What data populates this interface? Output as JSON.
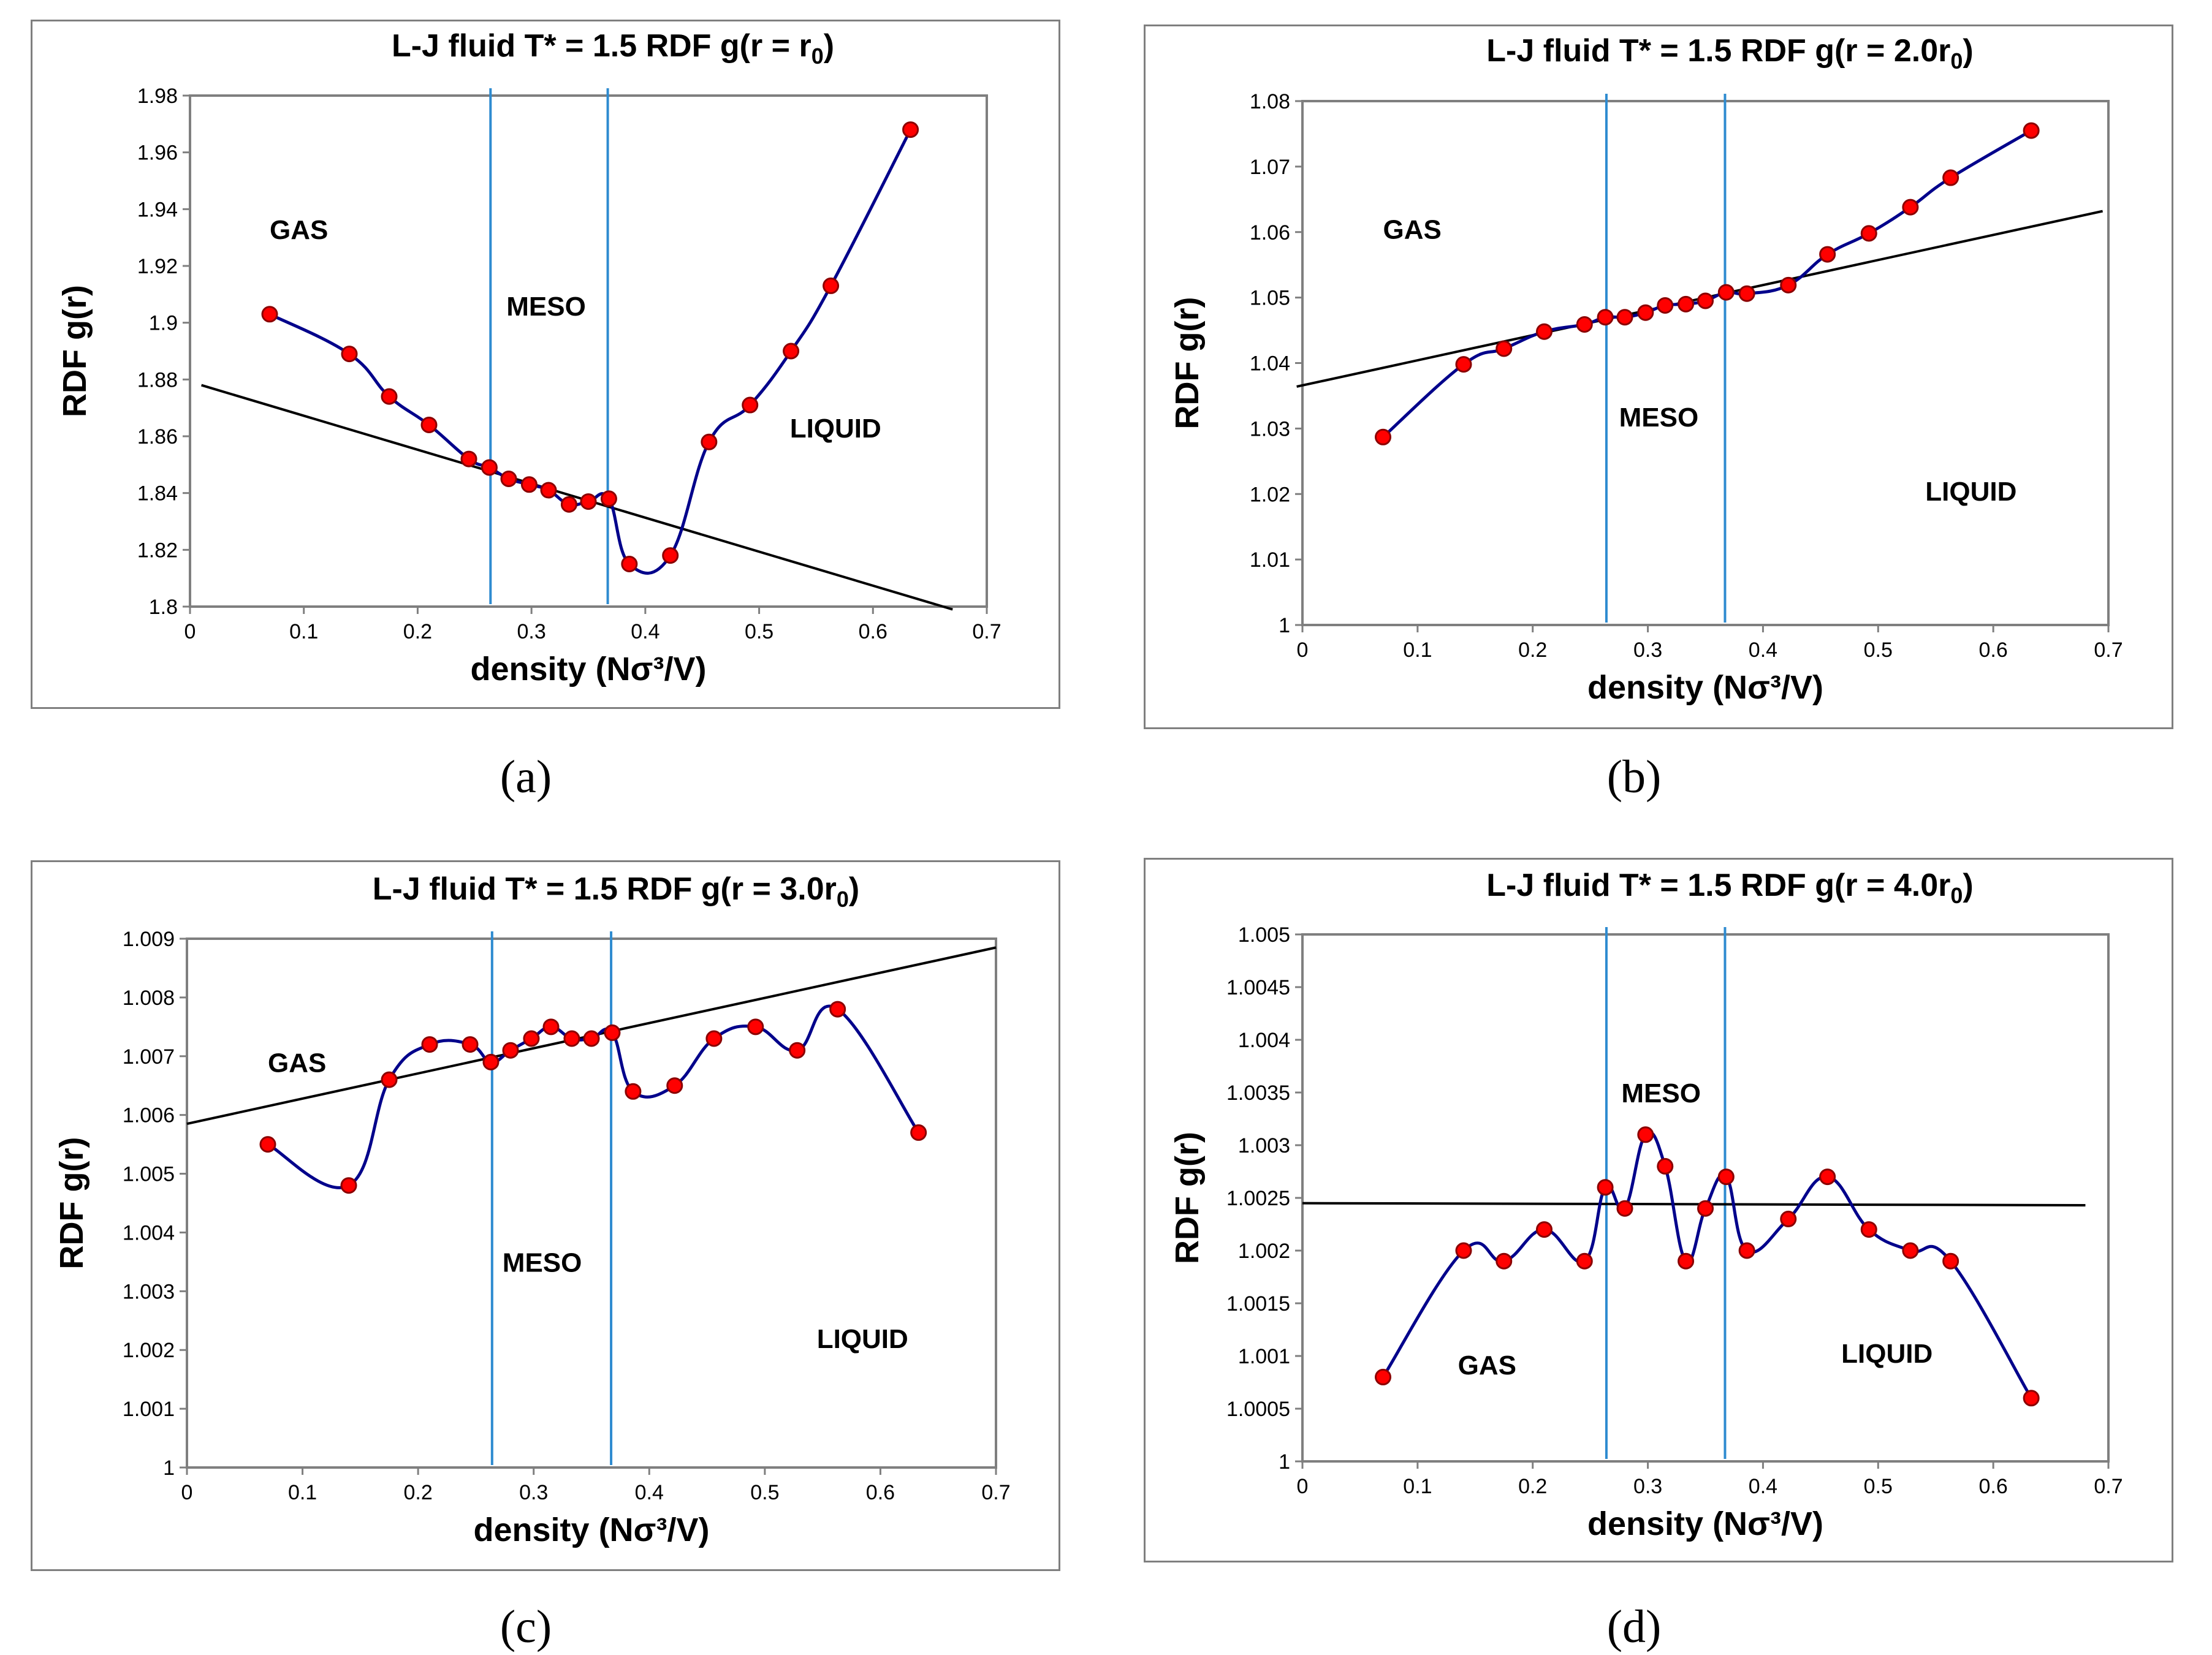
{
  "chart_data": [
    {
      "type": "line",
      "panel_label": "(a)",
      "title_main": "L-J fluid T* = 1.5 RDF g(r = r",
      "title_sub": "0",
      "title_end": ")",
      "xlabel": "density (Nσ³/V)",
      "ylabel": "RDF g(r)",
      "xlim": [
        0,
        0.7
      ],
      "ylim": [
        1.8,
        1.98
      ],
      "xticks": [
        "0",
        "0.1",
        "0.2",
        "0.3",
        "0.4",
        "0.5",
        "0.6",
        "0.7"
      ],
      "yticks": [
        "1.8",
        "1.82",
        "1.84",
        "1.86",
        "1.88",
        "1.9",
        "1.92",
        "1.94",
        "1.96",
        "1.98"
      ],
      "series": [
        {
          "name": "RDF",
          "x": [
            0.07,
            0.14,
            0.175,
            0.21,
            0.245,
            0.263,
            0.28,
            0.298,
            0.315,
            0.333,
            0.35,
            0.368,
            0.386,
            0.422,
            0.456,
            0.492,
            0.528,
            0.563,
            0.633
          ],
          "y": [
            1.903,
            1.889,
            1.874,
            1.864,
            1.852,
            1.849,
            1.845,
            1.843,
            1.841,
            1.836,
            1.837,
            1.838,
            1.815,
            1.818,
            1.858,
            1.871,
            1.89,
            1.913,
            1.968
          ]
        }
      ],
      "trendline": {
        "x": [
          0.01,
          0.67
        ],
        "y": [
          1.878,
          1.799
        ]
      },
      "boundaries": [
        0.264,
        0.367
      ],
      "regions": [
        {
          "label": "GAS",
          "x": 0.07,
          "y": 1.933
        },
        {
          "label": "MESO",
          "x": 0.278,
          "y": 1.906
        },
        {
          "label": "LIQUID",
          "x": 0.527,
          "y": 1.863
        }
      ]
    },
    {
      "type": "line",
      "panel_label": "(b)",
      "title_main": "L-J fluid T* = 1.5 RDF g(r = 2.0r",
      "title_sub": "0",
      "title_end": ")",
      "xlabel": "density (Nσ³/V)",
      "ylabel": "RDF g(r)",
      "xlim": [
        0,
        0.7
      ],
      "ylim": [
        1,
        1.08
      ],
      "xticks": [
        "0",
        "0.1",
        "0.2",
        "0.3",
        "0.4",
        "0.5",
        "0.6",
        "0.7"
      ],
      "yticks": [
        "1",
        "1.01",
        "1.02",
        "1.03",
        "1.04",
        "1.05",
        "1.06",
        "1.07",
        "1.08"
      ],
      "series": [
        {
          "name": "RDF",
          "x": [
            0.07,
            0.14,
            0.175,
            0.21,
            0.245,
            0.263,
            0.28,
            0.298,
            0.315,
            0.333,
            0.35,
            0.368,
            0.386,
            0.422,
            0.456,
            0.492,
            0.528,
            0.563,
            0.633
          ],
          "y": [
            1.0287,
            1.0398,
            1.0422,
            1.0448,
            1.0459,
            1.047,
            1.047,
            1.0477,
            1.0488,
            1.049,
            1.0495,
            1.0508,
            1.0506,
            1.0519,
            1.0566,
            1.0598,
            1.0638,
            1.0683,
            1.0755
          ]
        }
      ],
      "trendline": {
        "x": [
          -0.005,
          0.695
        ],
        "y": [
          1.0364,
          1.0632
        ]
      },
      "boundaries": [
        0.264,
        0.367
      ],
      "regions": [
        {
          "label": "GAS",
          "x": 0.07,
          "y": 1.0605
        },
        {
          "label": "MESO",
          "x": 0.275,
          "y": 1.0318
        },
        {
          "label": "LIQUID",
          "x": 0.541,
          "y": 1.0205
        }
      ]
    },
    {
      "type": "line",
      "panel_label": "(c)",
      "title_main": "L-J fluid T* = 1.5 RDF g(r = 3.0r",
      "title_sub": "0",
      "title_end": ")",
      "xlabel": "density (Nσ³/V)",
      "ylabel": "RDF g(r)",
      "xlim": [
        0,
        0.7
      ],
      "ylim": [
        1,
        1.009
      ],
      "xticks": [
        "0",
        "0.1",
        "0.2",
        "0.3",
        "0.4",
        "0.5",
        "0.6",
        "0.7"
      ],
      "yticks": [
        "1",
        "1.001",
        "1.002",
        "1.003",
        "1.004",
        "1.005",
        "1.006",
        "1.007",
        "1.008",
        "1.009"
      ],
      "series": [
        {
          "name": "RDF",
          "x": [
            0.07,
            0.14,
            0.175,
            0.21,
            0.245,
            0.263,
            0.28,
            0.298,
            0.315,
            0.333,
            0.35,
            0.368,
            0.386,
            0.422,
            0.456,
            0.492,
            0.528,
            0.563,
            0.633
          ],
          "y": [
            1.0055,
            1.0048,
            1.0066,
            1.0072,
            1.0072,
            1.0069,
            1.0071,
            1.0073,
            1.0075,
            1.0073,
            1.0073,
            1.0074,
            1.0064,
            1.0065,
            1.0073,
            1.0075,
            1.0071,
            1.0078,
            1.0057
          ]
        }
      ],
      "trendline": {
        "x": [
          0,
          0.7
        ],
        "y": [
          1.00585,
          1.00885
        ]
      },
      "boundaries": [
        0.264,
        0.367
      ],
      "regions": [
        {
          "label": "GAS",
          "x": 0.07,
          "y": 1.0069
        },
        {
          "label": "MESO",
          "x": 0.273,
          "y": 1.0035
        },
        {
          "label": "LIQUID",
          "x": 0.545,
          "y": 1.0022
        }
      ]
    },
    {
      "type": "line",
      "panel_label": "(d)",
      "title_main": "L-J fluid T* = 1.5 RDF g(r = 4.0r",
      "title_sub": "0",
      "title_end": ")",
      "xlabel": "density (Nσ³/V)",
      "ylabel": "RDF g(r)",
      "xlim": [
        0,
        0.7
      ],
      "ylim": [
        1,
        1.005
      ],
      "xticks": [
        "0",
        "0.1",
        "0.2",
        "0.3",
        "0.4",
        "0.5",
        "0.6",
        "0.7"
      ],
      "yticks": [
        "1",
        "1.0005",
        "1.001",
        "1.0015",
        "1.002",
        "1.0025",
        "1.003",
        "1.0035",
        "1.004",
        "1.0045",
        "1.005"
      ],
      "series": [
        {
          "name": "RDF",
          "x": [
            0.07,
            0.14,
            0.175,
            0.21,
            0.245,
            0.263,
            0.28,
            0.298,
            0.315,
            0.333,
            0.35,
            0.368,
            0.386,
            0.422,
            0.456,
            0.492,
            0.528,
            0.563,
            0.633
          ],
          "y": [
            1.0008,
            1.002,
            1.0019,
            1.0022,
            1.0019,
            1.0026,
            1.0024,
            1.0031,
            1.0028,
            1.0019,
            1.0024,
            1.0027,
            1.002,
            1.0023,
            1.0027,
            1.0022,
            1.002,
            1.0019,
            1.0006
          ]
        }
      ],
      "trendline": {
        "x": [
          0,
          0.68
        ],
        "y": [
          1.00245,
          1.00243
        ]
      },
      "boundaries": [
        0.264,
        0.367
      ],
      "regions": [
        {
          "label": "GAS",
          "x": 0.135,
          "y": 1.00092
        },
        {
          "label": "MESO",
          "x": 0.277,
          "y": 1.0035
        },
        {
          "label": "LIQUID",
          "x": 0.468,
          "y": 1.00103
        }
      ]
    }
  ],
  "colors": {
    "curve": "#00008b",
    "marker_fill": "#ff0000",
    "marker_edge": "#8b0000",
    "boundary": "#2e8bd0",
    "trendline": "#000000",
    "frame": "#7f7f7f"
  }
}
